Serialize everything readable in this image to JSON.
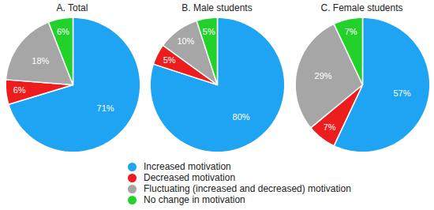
{
  "chart_data": [
    {
      "type": "pie",
      "title": "A. Total",
      "categories": [
        "Increased motivation",
        "Decreased motivation",
        "Fluctuating (increased and decreased) motivation",
        "No change in motivation"
      ],
      "values": [
        71,
        6,
        18,
        6
      ],
      "value_labels": [
        "71%",
        "6%",
        "18%",
        "6%"
      ],
      "colors": [
        "#1ea4f2",
        "#ee1d1d",
        "#a6a6a6",
        "#23d12b"
      ],
      "data_labels": true,
      "legend": "bottom"
    },
    {
      "type": "pie",
      "title": "B. Male students",
      "categories": [
        "Increased motivation",
        "Decreased motivation",
        "Fluctuating (increased and decreased) motivation",
        "No change in motivation"
      ],
      "values": [
        80,
        5,
        10,
        5
      ],
      "value_labels": [
        "80%",
        "5%",
        "10%",
        "5%"
      ],
      "colors": [
        "#1ea4f2",
        "#ee1d1d",
        "#a6a6a6",
        "#23d12b"
      ],
      "data_labels": true,
      "legend": "bottom"
    },
    {
      "type": "pie",
      "title": "C. Female students",
      "categories": [
        "Increased motivation",
        "Decreased motivation",
        "Fluctuating (increased and decreased) motivation",
        "No change in motivation"
      ],
      "values": [
        57,
        7,
        29,
        7
      ],
      "value_labels": [
        "57%",
        "7%",
        "29%",
        "7%"
      ],
      "colors": [
        "#1ea4f2",
        "#ee1d1d",
        "#a6a6a6",
        "#23d12b"
      ],
      "data_labels": true,
      "legend": "bottom"
    }
  ]
}
